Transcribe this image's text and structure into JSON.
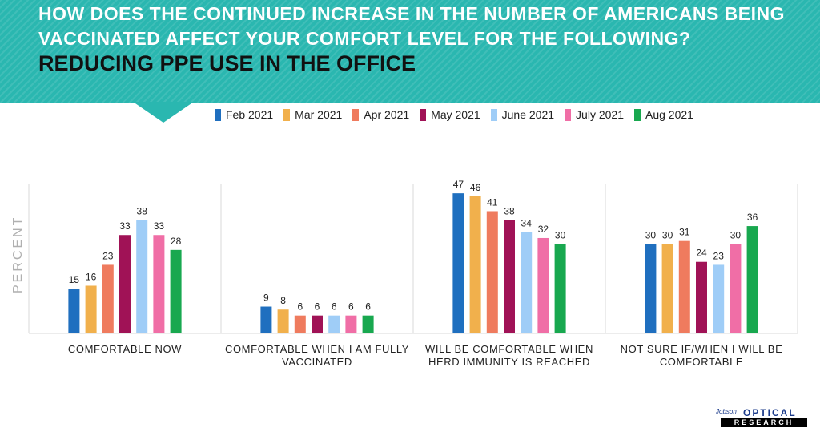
{
  "header": {
    "question_line1": "HOW DOES THE CONTINUED INCREASE IN THE NUMBER OF AMERICANS BEING",
    "question_line2": "VACCINATED AFFECT YOUR COMFORT LEVEL FOR THE FOLLOWING?",
    "subtitle": "REDUCING PPE USE IN THE OFFICE"
  },
  "logo": {
    "script": "Jobson",
    "word1": "OPTICAL",
    "word2": "RESEARCH"
  },
  "colors": {
    "header_bg": "#2ab7b0",
    "series": [
      "#1f6fbf",
      "#f1b04c",
      "#ef7b5e",
      "#a01256",
      "#9fcdf7",
      "#f06ea6",
      "#18a84f"
    ]
  },
  "chart_data": {
    "type": "bar",
    "title": "REDUCING PPE USE IN THE OFFICE",
    "ylabel": "PERCENT",
    "xlabel": "",
    "ylim": [
      0,
      50
    ],
    "grid": false,
    "legend": "top-center",
    "categories": [
      "COMFORTABLE NOW",
      "COMFORTABLE WHEN I AM FULLY VACCINATED",
      "WILL BE COMFORTABLE WHEN HERD IMMUNITY IS REACHED",
      "NOT SURE IF/WHEN I WILL BE COMFORTABLE"
    ],
    "category_lines": [
      [
        "COMFORTABLE NOW"
      ],
      [
        "COMFORTABLE WHEN I AM FULLY",
        "VACCINATED"
      ],
      [
        "WILL BE COMFORTABLE WHEN",
        "HERD IMMUNITY IS REACHED"
      ],
      [
        "NOT SURE IF/WHEN I WILL BE",
        "COMFORTABLE"
      ]
    ],
    "series": [
      {
        "name": "Feb 2021",
        "values": [
          15,
          9,
          47,
          30
        ]
      },
      {
        "name": "Mar 2021",
        "values": [
          16,
          8,
          46,
          30
        ]
      },
      {
        "name": "Apr 2021",
        "values": [
          23,
          6,
          41,
          31
        ]
      },
      {
        "name": "May 2021",
        "values": [
          33,
          6,
          38,
          24
        ]
      },
      {
        "name": "June 2021",
        "values": [
          38,
          6,
          34,
          23
        ]
      },
      {
        "name": "July 2021",
        "values": [
          33,
          6,
          32,
          30
        ]
      },
      {
        "name": "Aug 2021",
        "values": [
          28,
          6,
          30,
          36
        ]
      }
    ]
  }
}
